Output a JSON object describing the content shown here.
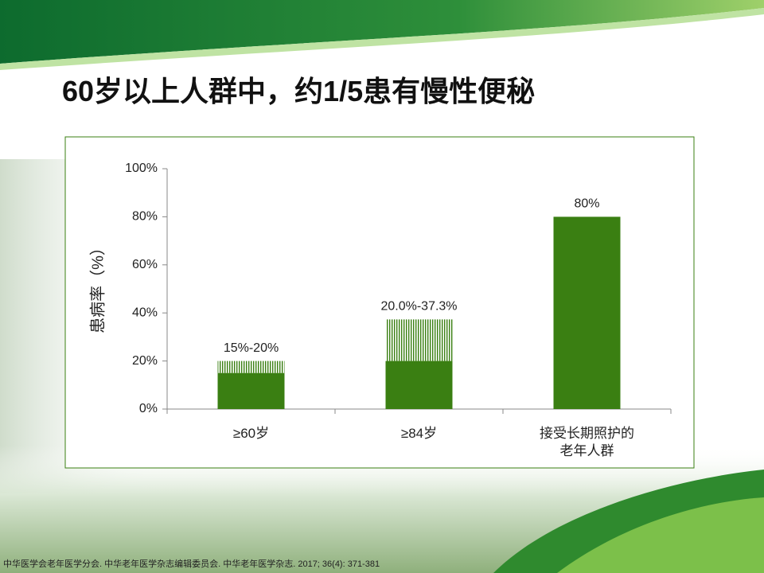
{
  "title": "60岁以上人群中，约1/5患有慢性便秘",
  "chart_data": {
    "type": "range-bar",
    "y_label": "患病率（%）",
    "categories": [
      "≥60岁",
      "≥84岁",
      "接受长期照护的老年人群"
    ],
    "low": [
      15,
      20,
      80
    ],
    "high": [
      20,
      37.3,
      null
    ],
    "value_labels": [
      "15%-20%",
      "20.0%-37.3%",
      "80%"
    ],
    "color": "#3a7f12",
    "ylim": [
      0,
      100
    ],
    "yticks": [
      {
        "value": 0,
        "label": "0%"
      },
      {
        "value": 20,
        "label": "20%"
      },
      {
        "value": 40,
        "label": "40%"
      },
      {
        "value": 60,
        "label": "60%"
      },
      {
        "value": 80,
        "label": "80%"
      },
      {
        "value": 100,
        "label": "100%"
      }
    ]
  },
  "footnote": "中华医学会老年医学分会. 中华老年医学杂志编辑委员会. 中华老年医学杂志. 2017; 36(4): 371-381"
}
